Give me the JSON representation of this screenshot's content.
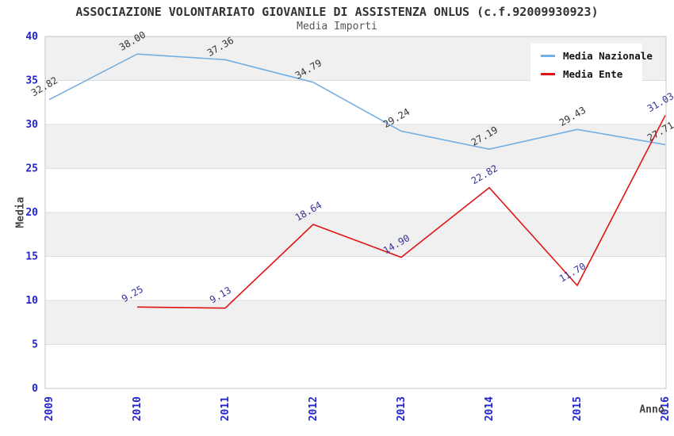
{
  "chart_data": {
    "type": "line",
    "title": "ASSOCIAZIONE VOLONTARIATO GIOVANILE DI ASSISTENZA ONLUS (c.f.92009930923)",
    "subtitle": "Media Importi",
    "xlabel": "Anno",
    "ylabel": "Media",
    "x": [
      2009,
      2010,
      2011,
      2012,
      2013,
      2014,
      2015,
      2016
    ],
    "ylim": [
      0,
      40
    ],
    "ytick_step": 5,
    "yticks": [
      0,
      5,
      10,
      15,
      20,
      25,
      30,
      35,
      40
    ],
    "grid": true,
    "alternating_bands": true,
    "legend_position": "top-right",
    "series": [
      {
        "name": "Media Nazionale",
        "color": "#74afe3",
        "label_color": "#333333",
        "values": [
          32.82,
          38.0,
          37.36,
          34.79,
          29.24,
          27.19,
          29.43,
          27.71
        ]
      },
      {
        "name": "Media Ente",
        "color": "#e01414",
        "label_color": "#333399",
        "values": [
          null,
          9.25,
          9.13,
          18.64,
          14.9,
          22.82,
          11.7,
          31.03
        ]
      }
    ],
    "colors": {
      "tick_label": "#2424cc",
      "axis_title": "#444444",
      "band_fill": "#f0f0f0",
      "gridline": "#dcdcdc",
      "plot_border": "#c6c6c6",
      "title_text": "#333333",
      "subtitle_text": "#555555"
    }
  }
}
